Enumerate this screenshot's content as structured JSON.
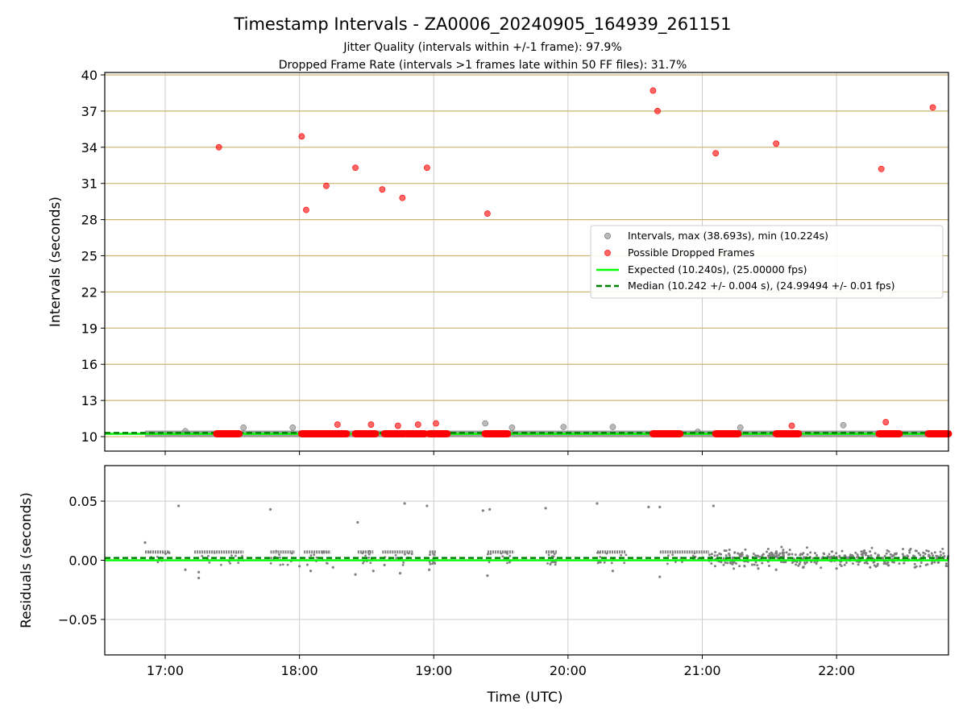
{
  "title": "Timestamp Intervals - ZA0006_20240905_164939_261151",
  "subtitle1": "Jitter Quality (intervals within +/-1 frame): 97.9%",
  "subtitle2": "Dropped Frame Rate (intervals >1 frames late within 50 FF files): 31.7%",
  "colors": {
    "intervals": "#808080",
    "dropped": "#ff0000",
    "expected": "#00ff00",
    "median": "#008000",
    "hgrid": "#c8b46e",
    "vgrid": "#cccccc"
  },
  "chart_data": [
    {
      "type": "scatter",
      "xlabel": "",
      "ylabel": "Intervals (seconds)",
      "xlim": [
        "16:33",
        "22:50"
      ],
      "ylim": [
        8.8,
        40.2
      ],
      "yticks": [
        10,
        13,
        16,
        19,
        22,
        25,
        28,
        31,
        34,
        37,
        40
      ],
      "xticks": [
        "17:00",
        "18:00",
        "19:00",
        "20:00",
        "21:00",
        "22:00"
      ],
      "grid": true,
      "legend_position": "center-right",
      "series": [
        {
          "name": "Intervals, max (38.693s), min (10.224s)",
          "band": {
            "x_start": "16:51",
            "x_end": "22:50",
            "y": 10.24
          },
          "points": [
            {
              "x": "17:09",
              "y": 10.45
            },
            {
              "x": "17:35",
              "y": 10.75
            },
            {
              "x": "17:57",
              "y": 10.75
            },
            {
              "x": "19:23",
              "y": 11.1
            },
            {
              "x": "19:35",
              "y": 10.75
            },
            {
              "x": "19:58",
              "y": 10.8
            },
            {
              "x": "20:20",
              "y": 10.8
            },
            {
              "x": "20:58",
              "y": 10.4
            },
            {
              "x": "21:17",
              "y": 10.75
            },
            {
              "x": "22:03",
              "y": 10.95
            }
          ]
        },
        {
          "name": "Possible Dropped Frames",
          "points": [
            {
              "x": "17:24",
              "y": 34.0
            },
            {
              "x": "18:01",
              "y": 34.9
            },
            {
              "x": "18:03",
              "y": 28.8
            },
            {
              "x": "18:12",
              "y": 30.8
            },
            {
              "x": "18:17",
              "y": 11.0
            },
            {
              "x": "18:25",
              "y": 32.3
            },
            {
              "x": "18:32",
              "y": 11.0
            },
            {
              "x": "18:37",
              "y": 30.5
            },
            {
              "x": "18:44",
              "y": 10.9
            },
            {
              "x": "18:46",
              "y": 29.8
            },
            {
              "x": "18:53",
              "y": 11.0
            },
            {
              "x": "18:57",
              "y": 32.3
            },
            {
              "x": "19:01",
              "y": 11.1
            },
            {
              "x": "19:24",
              "y": 28.5
            },
            {
              "x": "20:38",
              "y": 38.7
            },
            {
              "x": "20:40",
              "y": 37.0
            },
            {
              "x": "21:06",
              "y": 33.5
            },
            {
              "x": "21:33",
              "y": 34.3
            },
            {
              "x": "21:40",
              "y": 10.9
            },
            {
              "x": "22:20",
              "y": 32.2
            },
            {
              "x": "22:22",
              "y": 11.2
            },
            {
              "x": "22:43",
              "y": 37.3
            }
          ],
          "clusters": [
            {
              "x_start": "17:23",
              "x_end": "17:33",
              "y": 10.24
            },
            {
              "x_start": "18:01",
              "x_end": "18:21",
              "y": 10.24
            },
            {
              "x_start": "18:25",
              "x_end": "18:34",
              "y": 10.24
            },
            {
              "x_start": "18:38",
              "x_end": "18:47",
              "y": 10.24
            },
            {
              "x_start": "18:48",
              "x_end": "18:56",
              "y": 10.24
            },
            {
              "x_start": "18:58",
              "x_end": "19:06",
              "y": 10.24
            },
            {
              "x_start": "19:23",
              "x_end": "19:33",
              "y": 10.24
            },
            {
              "x_start": "20:38",
              "x_end": "20:50",
              "y": 10.24
            },
            {
              "x_start": "21:06",
              "x_end": "21:16",
              "y": 10.24
            },
            {
              "x_start": "21:33",
              "x_end": "21:43",
              "y": 10.24
            },
            {
              "x_start": "22:19",
              "x_end": "22:28",
              "y": 10.24
            },
            {
              "x_start": "22:41",
              "x_end": "22:50",
              "y": 10.24
            }
          ]
        },
        {
          "name": "Expected (10.240s), (25.00000 fps)",
          "y": 10.24,
          "style": "solid"
        },
        {
          "name": "Median (10.242 +/- 0.004 s), (24.99494 +/- 0.01 fps)",
          "y": 10.242,
          "style": "dashed"
        }
      ]
    },
    {
      "type": "scatter",
      "xlabel": "Time (UTC)",
      "ylabel": "Residuals (seconds)",
      "xlim": [
        "16:33",
        "22:50"
      ],
      "ylim": [
        -0.08,
        0.08
      ],
      "yticks": [
        -0.05,
        0.0,
        0.05
      ],
      "ytick_labels": [
        "−0.05",
        "0.00",
        "0.05"
      ],
      "xticks": [
        "17:00",
        "18:00",
        "19:00",
        "20:00",
        "21:00",
        "22:00"
      ],
      "xtick_labels": [
        "17:00",
        "18:00",
        "19:00",
        "20:00",
        "21:00",
        "22:00"
      ],
      "grid": true,
      "expected_residual": 0.0,
      "median_residual": 0.002,
      "bands": [
        {
          "x_start": "16:51",
          "x_end": "17:02",
          "y": 0.007
        },
        {
          "x_start": "17:13",
          "x_end": "17:35",
          "y": 0.007
        },
        {
          "x_start": "17:47",
          "x_end": "17:58",
          "y": 0.007
        },
        {
          "x_start": "18:02",
          "x_end": "18:14",
          "y": 0.007
        },
        {
          "x_start": "18:26",
          "x_end": "18:33",
          "y": 0.007
        },
        {
          "x_start": "18:37",
          "x_end": "18:51",
          "y": 0.007
        },
        {
          "x_start": "18:58",
          "x_end": "19:01",
          "y": 0.007
        },
        {
          "x_start": "19:24",
          "x_end": "19:36",
          "y": 0.007
        },
        {
          "x_start": "19:50",
          "x_end": "19:55",
          "y": 0.007
        },
        {
          "x_start": "20:13",
          "x_end": "20:26",
          "y": 0.007
        },
        {
          "x_start": "20:41",
          "x_end": "21:03",
          "y": 0.007
        }
      ],
      "points": [
        {
          "x": "16:51",
          "y": 0.015
        },
        {
          "x": "17:06",
          "y": 0.046
        },
        {
          "x": "17:09",
          "y": -0.008
        },
        {
          "x": "17:15",
          "y": -0.015
        },
        {
          "x": "17:15",
          "y": -0.01
        },
        {
          "x": "17:47",
          "y": 0.043
        },
        {
          "x": "18:00",
          "y": -0.005
        },
        {
          "x": "18:05",
          "y": -0.009
        },
        {
          "x": "18:15",
          "y": -0.006
        },
        {
          "x": "18:26",
          "y": 0.032
        },
        {
          "x": "18:25",
          "y": -0.012
        },
        {
          "x": "18:33",
          "y": -0.009
        },
        {
          "x": "18:38",
          "y": -0.004
        },
        {
          "x": "18:47",
          "y": 0.048
        },
        {
          "x": "18:45",
          "y": -0.011
        },
        {
          "x": "18:57",
          "y": 0.046
        },
        {
          "x": "18:58",
          "y": -0.008
        },
        {
          "x": "19:22",
          "y": 0.042
        },
        {
          "x": "19:25",
          "y": 0.043
        },
        {
          "x": "19:24",
          "y": -0.013
        },
        {
          "x": "19:50",
          "y": 0.044
        },
        {
          "x": "20:13",
          "y": 0.048
        },
        {
          "x": "20:20",
          "y": -0.009
        },
        {
          "x": "20:36",
          "y": 0.045
        },
        {
          "x": "20:41",
          "y": 0.045
        },
        {
          "x": "20:41",
          "y": -0.014
        },
        {
          "x": "21:05",
          "y": 0.046
        },
        {
          "x": "21:25",
          "y": -0.007
        },
        {
          "x": "21:33",
          "y": -0.008
        },
        {
          "x": "21:45",
          "y": -0.006
        },
        {
          "x": "22:00",
          "y": -0.007
        },
        {
          "x": "22:15",
          "y": -0.006
        },
        {
          "x": "22:35",
          "y": -0.006
        }
      ],
      "noise_region": {
        "x_start": "21:03",
        "x_end": "22:50",
        "y_min": -0.008,
        "y_max": 0.012
      }
    }
  ]
}
